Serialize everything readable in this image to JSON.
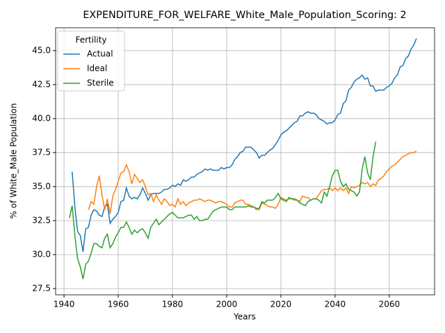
{
  "chart_data": {
    "type": "line",
    "title": "EXPENDITURE_FOR_WELFARE_White_Male_Population_Scoring: 2",
    "xlabel": "Years",
    "ylabel": "% of White_Male Population",
    "legend_title": "Fertility",
    "legend": "upper left",
    "grid": true,
    "xlim": [
      1936.9,
      2076.7
    ],
    "ylim": [
      27.04,
      46.68
    ],
    "xticks": [
      1940,
      1960,
      1980,
      2000,
      2020,
      2040,
      2060
    ],
    "yticks": [
      27.5,
      {
        "value": 30,
        "label": "30.0"
      },
      32.5,
      {
        "value": 35,
        "label": "35.0"
      },
      37.5,
      {
        "value": 40,
        "label": "40.0"
      },
      42.5,
      {
        "value": 45,
        "label": "45.0"
      }
    ],
    "x": [
      1942,
      1943,
      1944,
      1945,
      1946,
      1947,
      1948,
      1949,
      1950,
      1951,
      1952,
      1953,
      1954,
      1955,
      1956,
      1957,
      1958,
      1959,
      1960,
      1961,
      1962,
      1963,
      1964,
      1965,
      1966,
      1967,
      1968,
      1969,
      1970,
      1971,
      1972,
      1973,
      1974,
      1975,
      1976,
      1977,
      1978,
      1979,
      1980,
      1981,
      1982,
      1983,
      1984,
      1985,
      1986,
      1987,
      1988,
      1989,
      1990,
      1991,
      1992,
      1993,
      1994,
      1995,
      1996,
      1997,
      1998,
      1999,
      2000,
      2001,
      2002,
      2003,
      2004,
      2005,
      2006,
      2007,
      2008,
      2009,
      2010,
      2011,
      2012,
      2013,
      2014,
      2015,
      2016,
      2017,
      2018,
      2019,
      2020,
      2021,
      2022,
      2023,
      2024,
      2025,
      2026,
      2027,
      2028,
      2029,
      2030,
      2031,
      2032,
      2033,
      2034,
      2035,
      2036,
      2037,
      2038,
      2039,
      2040,
      2041,
      2042,
      2043,
      2044,
      2045,
      2046,
      2047,
      2048,
      2049,
      2050,
      2051,
      2052,
      2053,
      2054,
      2055,
      2056,
      2057,
      2058,
      2059,
      2060,
      2061,
      2062,
      2063,
      2064,
      2065,
      2066,
      2067,
      2068,
      2069,
      2070
    ],
    "series": [
      {
        "name": "Actual",
        "color": "#1f77b4",
        "values": [
          null,
          36.1,
          33.5,
          31.7,
          31.4,
          30.2,
          31.9,
          32.0,
          32.9,
          33.3,
          33.2,
          32.9,
          32.8,
          33.5,
          33.7,
          32.3,
          32.6,
          32.8,
          33.1,
          33.9,
          34.0,
          34.9,
          34.3,
          34.1,
          34.2,
          34.1,
          34.4,
          34.9,
          34.5,
          34.0,
          34.4,
          34.5,
          34.5,
          34.5,
          34.6,
          34.8,
          34.8,
          34.9,
          35.1,
          35.0,
          35.2,
          35.1,
          35.5,
          35.4,
          35.5,
          35.7,
          35.7,
          35.9,
          36.0,
          36.1,
          36.3,
          36.2,
          36.3,
          36.2,
          36.2,
          36.2,
          36.4,
          36.3,
          36.4,
          36.4,
          36.6,
          37.0,
          37.2,
          37.5,
          37.6,
          37.9,
          37.9,
          37.9,
          37.7,
          37.5,
          37.1,
          37.3,
          37.3,
          37.5,
          37.7,
          37.8,
          38.1,
          38.4,
          38.8,
          39.0,
          39.1,
          39.3,
          39.5,
          39.7,
          39.8,
          40.2,
          40.2,
          40.4,
          40.5,
          40.4,
          40.4,
          40.3,
          40.0,
          39.9,
          39.8,
          39.6,
          39.7,
          39.7,
          39.9,
          40.3,
          40.4,
          41.1,
          41.3,
          42.1,
          42.3,
          42.7,
          42.9,
          43.0,
          43.2,
          42.9,
          43.0,
          42.4,
          42.4,
          42.0,
          42.1,
          42.1,
          42.1,
          42.3,
          42.4,
          42.6,
          43.0,
          43.2,
          43.8,
          43.9,
          44.4,
          44.6,
          45.1,
          45.4,
          45.9
        ]
      },
      {
        "name": "Ideal",
        "color": "#ff7f0e",
        "values": [
          null,
          null,
          null,
          null,
          null,
          null,
          null,
          33.3,
          33.9,
          33.7,
          35.0,
          35.8,
          34.4,
          33.3,
          34.1,
          33.0,
          34.3,
          34.8,
          35.4,
          36.0,
          36.1,
          36.6,
          36.1,
          35.2,
          35.9,
          35.6,
          35.3,
          35.5,
          35.0,
          34.4,
          34.5,
          33.9,
          34.4,
          34.0,
          33.7,
          34.1,
          33.9,
          33.6,
          33.7,
          33.5,
          34.1,
          33.7,
          33.9,
          33.6,
          33.8,
          33.9,
          34.0,
          34.0,
          34.1,
          34.0,
          33.9,
          34.0,
          34.0,
          33.9,
          33.8,
          33.9,
          33.9,
          33.8,
          33.7,
          33.5,
          33.5,
          33.8,
          33.9,
          34.0,
          34.0,
          33.7,
          33.7,
          33.6,
          33.5,
          33.3,
          33.3,
          33.8,
          33.7,
          33.6,
          33.5,
          33.5,
          33.4,
          33.7,
          34.2,
          34.1,
          34.0,
          34.1,
          34.1,
          34.0,
          34.0,
          33.9,
          34.3,
          34.2,
          34.2,
          34.0,
          34.1,
          34.1,
          34.4,
          34.7,
          34.8,
          34.8,
          34.9,
          34.7,
          34.9,
          34.7,
          34.9,
          34.7,
          34.9,
          34.5,
          35.0,
          34.9,
          35.0,
          35.1,
          35.3,
          35.2,
          35.3,
          35.0,
          35.2,
          35.1,
          35.5,
          35.6,
          35.8,
          36.1,
          36.3,
          36.5,
          36.6,
          36.8,
          37.0,
          37.2,
          37.3,
          37.4,
          37.5,
          37.5,
          37.6
        ]
      },
      {
        "name": "Sterile",
        "color": "#2ca02c",
        "values": [
          32.7,
          33.6,
          31.4,
          29.7,
          29.1,
          28.2,
          29.3,
          29.5,
          30.1,
          30.8,
          30.8,
          30.6,
          30.5,
          31.2,
          31.5,
          30.5,
          30.8,
          31.3,
          31.6,
          32.0,
          32.0,
          32.4,
          32.0,
          31.5,
          31.8,
          31.6,
          31.8,
          31.9,
          31.6,
          31.2,
          32.0,
          32.3,
          32.6,
          32.2,
          32.4,
          32.6,
          32.8,
          33.0,
          33.1,
          32.9,
          32.7,
          32.7,
          32.7,
          32.8,
          32.9,
          32.9,
          32.6,
          32.8,
          32.5,
          32.5,
          32.6,
          32.6,
          32.9,
          33.2,
          33.3,
          33.4,
          33.5,
          33.5,
          33.5,
          33.3,
          33.3,
          33.5,
          33.5,
          33.5,
          33.5,
          33.5,
          33.6,
          33.5,
          33.5,
          33.4,
          33.4,
          33.9,
          33.8,
          34.0,
          34.0,
          34.0,
          34.2,
          34.5,
          34.1,
          34.0,
          33.9,
          34.2,
          34.1,
          34.1,
          34.0,
          33.8,
          33.7,
          33.6,
          33.9,
          34.0,
          34.1,
          34.1,
          34.0,
          33.8,
          34.6,
          34.3,
          35.0,
          35.8,
          36.2,
          36.2,
          35.4,
          35.0,
          35.2,
          34.8,
          34.7,
          34.6,
          34.3,
          34.6,
          36.3,
          37.2,
          36.0,
          35.5,
          37.2,
          38.3,
          null,
          null,
          null,
          null,
          null,
          null,
          null,
          null,
          null,
          null,
          null,
          null,
          null,
          null,
          null
        ]
      }
    ]
  }
}
